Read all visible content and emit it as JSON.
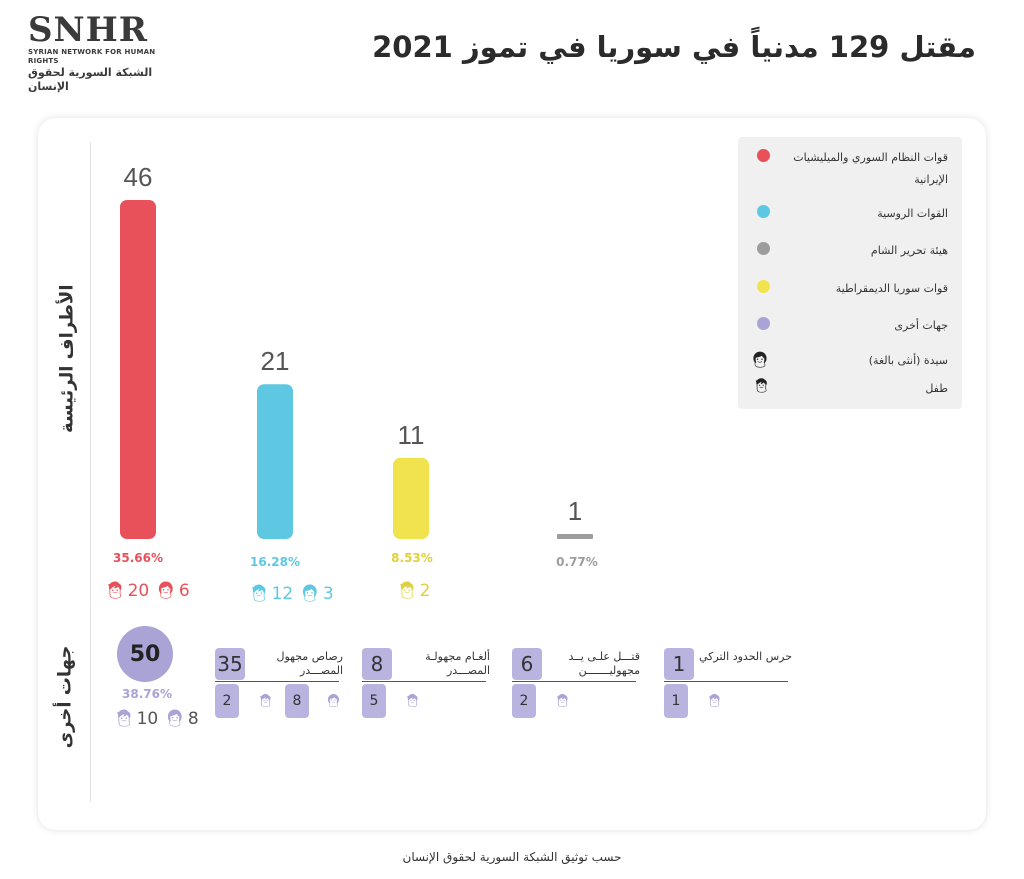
{
  "logo": {
    "main": "SNHR",
    "en": "SYRIAN NETWORK FOR HUMAN RIGHTS",
    "ar": "الشبكة السورية لحقوق الإنسان"
  },
  "title": "مقتل 129 مدنياً في سوريا في تموز 2021",
  "side_labels": {
    "main_parties": "الأطراف الرئيسة",
    "other_parties": "جهات أخرى"
  },
  "legend": [
    {
      "label": "قوات النظام السوري والميليشيات الإيرانية",
      "color": "#e8515a"
    },
    {
      "label": "القوات الروسية",
      "color": "#5ec8e3"
    },
    {
      "label": "هيئة تحرير الشام",
      "color": "#9d9d9d"
    },
    {
      "label": "قوات سوريا الديمقراطية",
      "color": "#f1e34d"
    },
    {
      "label": "جهات أخرى",
      "color": "#a9a3d6"
    },
    {
      "label": "سيدة (أنثى بالغة)",
      "icon": "woman-icon"
    },
    {
      "label": "طفل",
      "icon": "child-icon"
    }
  ],
  "chart_data": {
    "type": "bar",
    "categories": [
      "قوات النظام السوري والميليشيات الإيرانية",
      "القوات الروسية",
      "قوات سوريا الديمقراطية",
      "هيئة تحرير الشام"
    ],
    "values": [
      46,
      21,
      11,
      1
    ],
    "value_labels": [
      "46",
      "21",
      "11",
      "1"
    ],
    "percentages": [
      "35.66%",
      "16.28%",
      "8.53%",
      "0.77%"
    ],
    "colors": [
      "#e8515a",
      "#5ec8e3",
      "#f1e34d",
      "#9d9d9d"
    ],
    "children": [
      "20",
      "12",
      "2",
      ""
    ],
    "women": [
      "6",
      "3",
      "",
      ""
    ],
    "ylim": [
      0,
      46
    ]
  },
  "other_parties": {
    "total": "50",
    "percentage": "38.76%",
    "children": "10",
    "women": "8",
    "items": [
      {
        "label": "رصاص مجهول المصـــدر",
        "value": "35",
        "children": "2",
        "women": "8"
      },
      {
        "label": "ألغـام مجهولـة المصـــدر",
        "value": "8",
        "children": "5"
      },
      {
        "label": "قتـــل علـى يــد مجهوليـــــــن",
        "value": "6",
        "children": "2"
      },
      {
        "label": "حرس الحدود التركي",
        "value": "1",
        "children": "1"
      }
    ]
  },
  "source": "حسب توثيق الشبكة السورية لحقوق الإنسان"
}
